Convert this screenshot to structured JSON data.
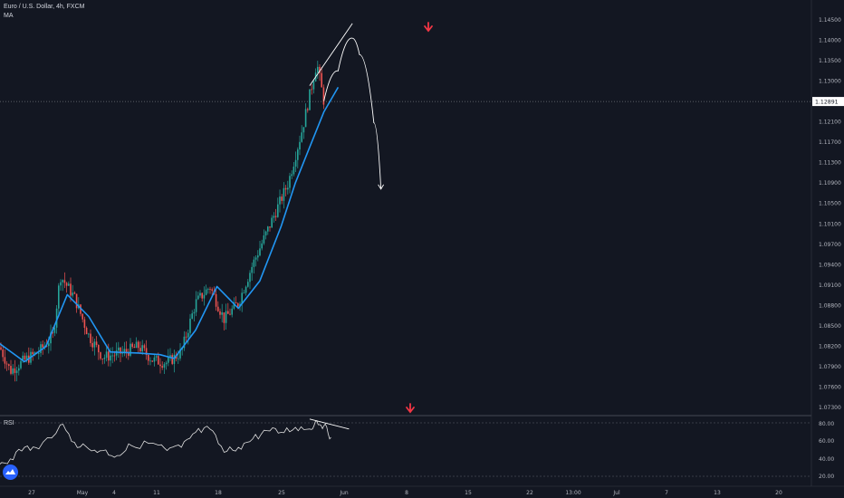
{
  "header": {
    "symbol_line": "Euro / U.S. Dollar, 4h, FXCM",
    "indicator": "MA"
  },
  "rsi_panel": {
    "label": "RSI"
  },
  "colors": {
    "background": "#131722",
    "up_candle": "#26a69a",
    "down_candle": "#ef5350",
    "ma_line": "#2196f3",
    "annotation": "#ffffff",
    "arrow_marker": "#f23645",
    "grid_divider": "#363a45",
    "price_label_bg": "#ffffff"
  },
  "chart_data": [
    {
      "type": "line",
      "title": "",
      "subtype": "candlestick-with-moving-average",
      "ylim": [
        1.0715,
        1.1475
      ],
      "y_ticks": [
        "1.14500",
        "1.14000",
        "1.13500",
        "1.13000",
        "1.12500",
        "1.12100",
        "1.11700",
        "1.11300",
        "1.10900",
        "1.10500",
        "1.10100",
        "1.09700",
        "1.09400",
        "1.09100",
        "1.08800",
        "1.08500",
        "1.08200",
        "1.07900",
        "1.07600",
        "1.07300"
      ],
      "x_ticks": [
        "27",
        "May",
        "4",
        "11",
        "18",
        "25",
        "Jun",
        "8",
        "15",
        "22",
        "13:00",
        "Jul",
        "7",
        "13",
        "20"
      ],
      "current_price_label": "1.12891",
      "price_path": [
        {
          "date": "Apr 22",
          "price": 1.0855
        },
        {
          "date": "Apr 24",
          "price": 1.0795
        },
        {
          "date": "Apr 26",
          "price": 1.0815
        },
        {
          "date": "Apr 28",
          "price": 1.083
        },
        {
          "date": "Apr 30",
          "price": 1.086
        },
        {
          "date": "May 1",
          "price": 1.097
        },
        {
          "date": "May 3",
          "price": 1.093
        },
        {
          "date": "May 5",
          "price": 1.086
        },
        {
          "date": "May 7",
          "price": 1.082
        },
        {
          "date": "May 10",
          "price": 1.083
        },
        {
          "date": "May 12",
          "price": 1.084
        },
        {
          "date": "May 14",
          "price": 1.0815
        },
        {
          "date": "May 16",
          "price": 1.081
        },
        {
          "date": "May 18",
          "price": 1.083
        },
        {
          "date": "May 20",
          "price": 1.092
        },
        {
          "date": "May 22",
          "price": 1.095
        },
        {
          "date": "May 24",
          "price": 1.089
        },
        {
          "date": "May 26",
          "price": 1.092
        },
        {
          "date": "May 28",
          "price": 1.099
        },
        {
          "date": "May 31",
          "price": 1.108
        },
        {
          "date": "Jun 2",
          "price": 1.114
        },
        {
          "date": "Jun 4",
          "price": 1.124
        },
        {
          "date": "Jun 6",
          "price": 1.136
        },
        {
          "date": "Jun 7",
          "price": 1.1289
        }
      ],
      "series": [
        {
          "name": "MA",
          "points": [
            {
              "date": "Apr 22",
              "value": 1.085
            },
            {
              "date": "Apr 26",
              "value": 1.0812
            },
            {
              "date": "Apr 29",
              "value": 1.084
            },
            {
              "date": "May 2",
              "value": 1.0935
            },
            {
              "date": "May 5",
              "value": 1.0895
            },
            {
              "date": "May 8",
              "value": 1.083
            },
            {
              "date": "May 12",
              "value": 1.0828
            },
            {
              "date": "May 15",
              "value": 1.0825
            },
            {
              "date": "May 17",
              "value": 1.0818
            },
            {
              "date": "May 20",
              "value": 1.087
            },
            {
              "date": "May 23",
              "value": 1.095
            },
            {
              "date": "May 26",
              "value": 1.091
            },
            {
              "date": "May 29",
              "value": 1.096
            },
            {
              "date": "Jun 1",
              "value": 1.106
            },
            {
              "date": "Jun 3",
              "value": 1.114
            },
            {
              "date": "Jun 5",
              "value": 1.1205
            },
            {
              "date": "Jun 7",
              "value": 1.127
            },
            {
              "date": "Jun 9",
              "value": 1.1315
            }
          ]
        }
      ],
      "annotations": {
        "trendline": [
          {
            "date": "Jun 5",
            "price": 1.1318
          },
          {
            "date": "Jun 11",
            "price": 1.1432
          }
        ],
        "projected_path": [
          {
            "date": "Jun 7",
            "price": 1.129
          },
          {
            "date": "Jun 9",
            "price": 1.1345
          },
          {
            "date": "Jun 11",
            "price": 1.1405
          },
          {
            "date": "Jun 12",
            "price": 1.1375
          },
          {
            "date": "Jun 14",
            "price": 1.125
          },
          {
            "date": "Jun 15",
            "price": 1.113
          }
        ]
      }
    },
    {
      "type": "line",
      "title": "",
      "name": "RSI",
      "ylim": [
        15,
        86
      ],
      "y_ticks": [
        "80.00",
        "60.00",
        "40.00",
        "20.00"
      ],
      "series": [
        {
          "name": "RSI",
          "points": [
            {
              "date": "Apr 22",
              "value": 30
            },
            {
              "date": "Apr 24",
              "value": 36
            },
            {
              "date": "Apr 26",
              "value": 50
            },
            {
              "date": "Apr 28",
              "value": 48
            },
            {
              "date": "May 1",
              "value": 77
            },
            {
              "date": "May 3",
              "value": 56
            },
            {
              "date": "May 5",
              "value": 48
            },
            {
              "date": "May 7",
              "value": 46
            },
            {
              "date": "May 9",
              "value": 40
            },
            {
              "date": "May 11",
              "value": 52
            },
            {
              "date": "May 14",
              "value": 55
            },
            {
              "date": "May 16",
              "value": 46
            },
            {
              "date": "May 18",
              "value": 50
            },
            {
              "date": "May 20",
              "value": 68
            },
            {
              "date": "May 22",
              "value": 72
            },
            {
              "date": "May 24",
              "value": 44
            },
            {
              "date": "May 26",
              "value": 50
            },
            {
              "date": "May 28",
              "value": 60
            },
            {
              "date": "May 30",
              "value": 70
            },
            {
              "date": "Jun 1",
              "value": 68
            },
            {
              "date": "Jun 3",
              "value": 74
            },
            {
              "date": "Jun 5",
              "value": 72
            },
            {
              "date": "Jun 6",
              "value": 82
            },
            {
              "date": "Jun 7",
              "value": 76
            },
            {
              "date": "Jun 8",
              "value": 62
            }
          ]
        }
      ],
      "annotations": {
        "divergence_line": [
          {
            "date": "Jun 5",
            "value": 84
          },
          {
            "date": "Jun 9",
            "value": 72
          }
        ]
      }
    }
  ]
}
